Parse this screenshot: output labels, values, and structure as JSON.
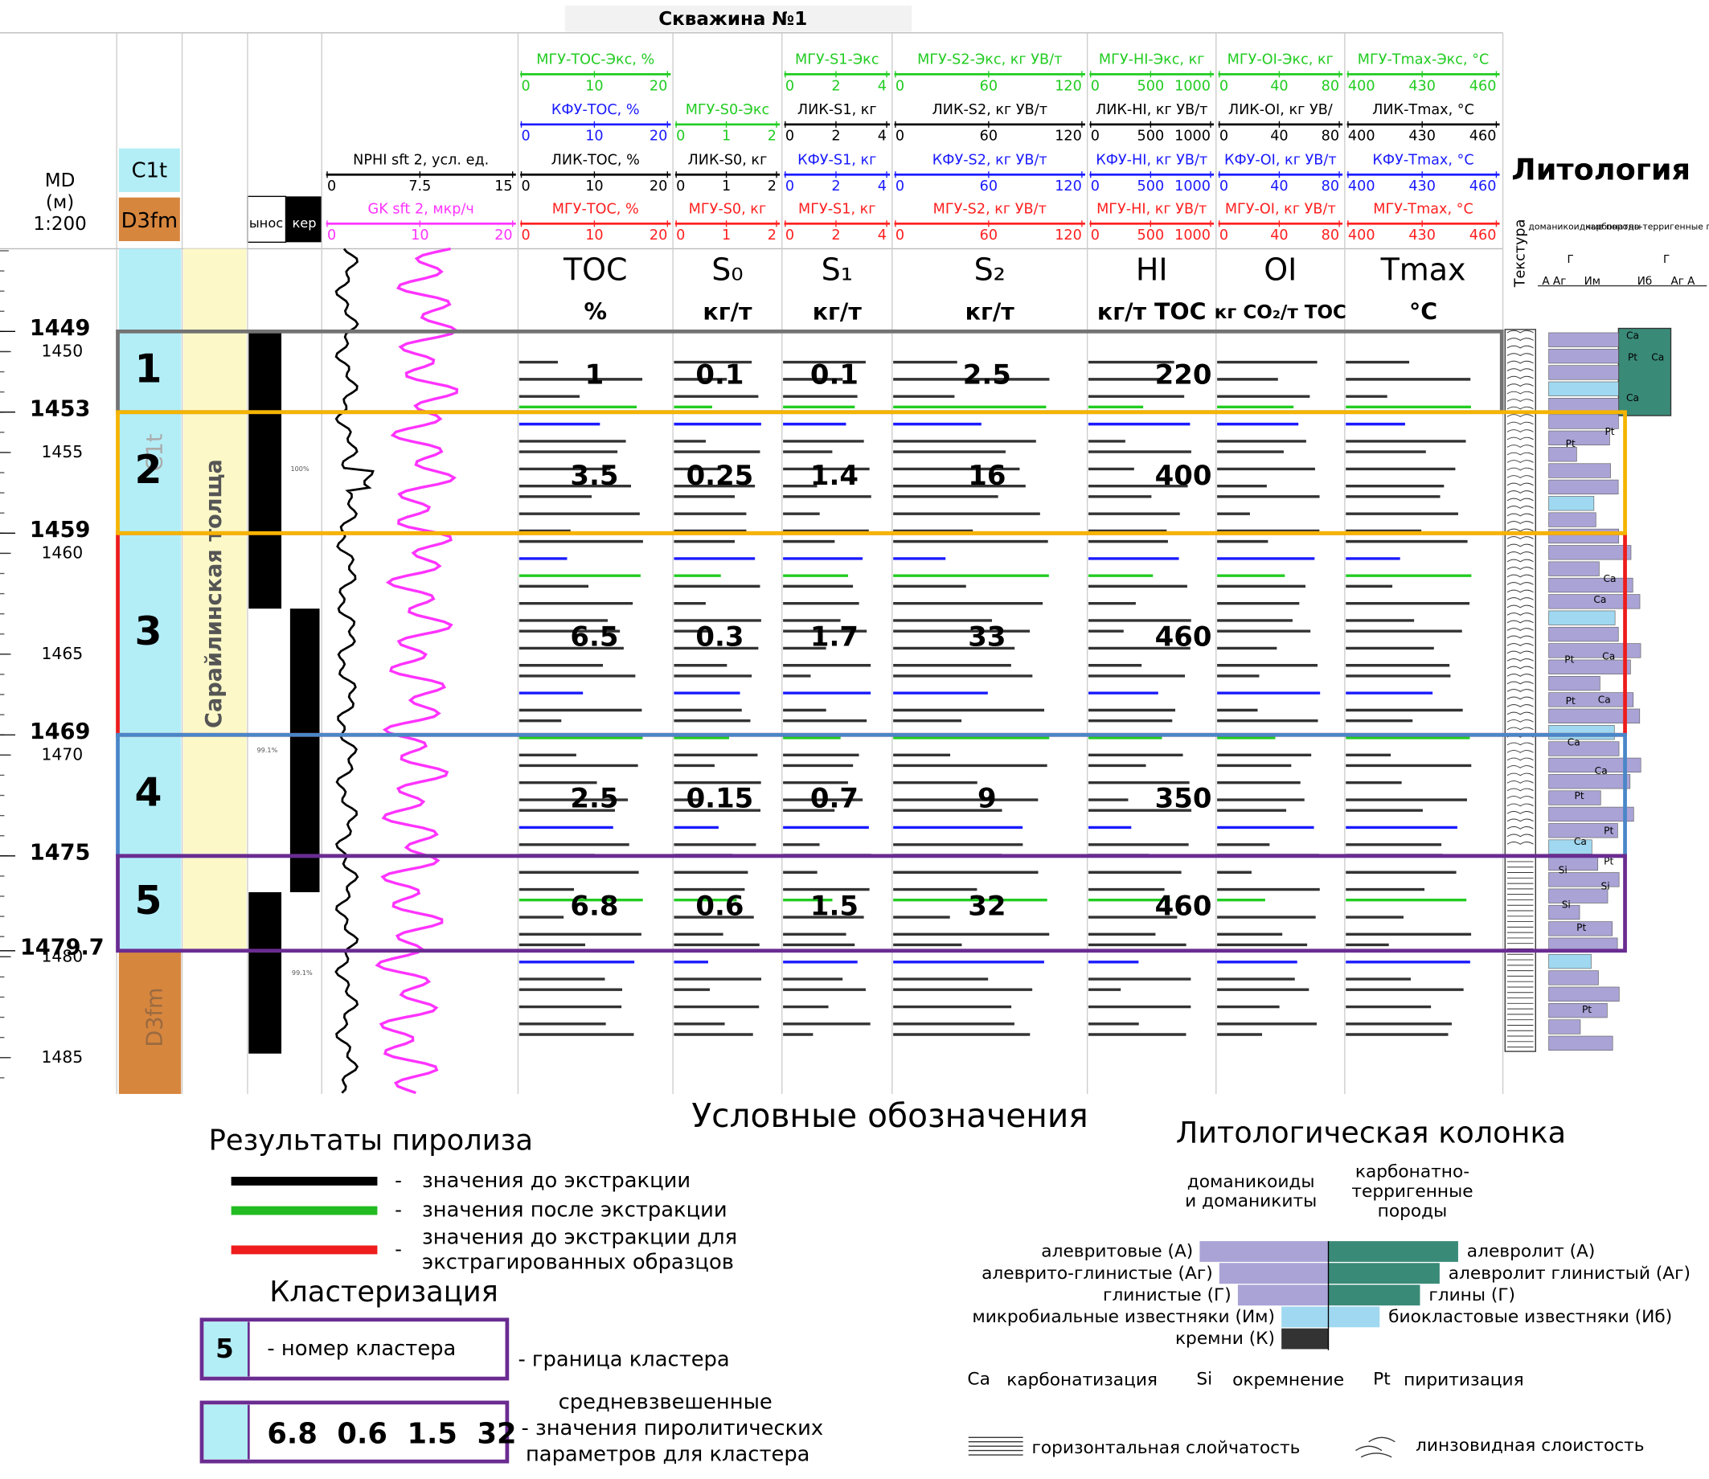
{
  "title": "Скважина №1",
  "depth_header": [
    "MD",
    "(м)",
    "1:200"
  ],
  "ylim": [
    1444.9,
    1486.8
  ],
  "depth_ticks": [
    1450,
    1455,
    1460,
    1465,
    1470,
    1480,
    1485
  ],
  "cluster_boundaries": [
    1449,
    1453,
    1459,
    1469,
    1475,
    1479.7
  ],
  "stratigraphy": [
    {
      "label": "C1t",
      "color": "#b3eef7"
    },
    {
      "label": "D3fm",
      "color": "#d7863e"
    }
  ],
  "formation": "Сарайлинская толща",
  "core_headers": [
    "ынос",
    "кер"
  ],
  "core_recovery": [
    "100%",
    "99.1%",
    "99.1%"
  ],
  "log_track": {
    "curves": [
      null,
      null,
      {
        "name": "NPHI sft 2, усл. ед.",
        "color": "#000000",
        "ticks": [
          0,
          7.5,
          15
        ]
      },
      {
        "name": "GK sft 2, мкр/ч",
        "color": "#ff33ff",
        "ticks": [
          0,
          10,
          20
        ]
      }
    ]
  },
  "pyrolysis_tracks": [
    {
      "heading": "TOC",
      "unit": "%",
      "curves": [
        {
          "name": "МГУ-TOC-Экс, %",
          "color": "#22cc22",
          "ticks": [
            0,
            10,
            20
          ]
        },
        {
          "name": "КФУ-TOC, %",
          "color": "#1a1aff",
          "ticks": [
            0,
            10,
            20
          ]
        },
        {
          "name": "ЛИК-TOC, %",
          "color": "#000000",
          "ticks": [
            0,
            10,
            20
          ]
        },
        {
          "name": "МГУ-TOC, %",
          "color": "#ff2020",
          "ticks": [
            0,
            10,
            20
          ]
        }
      ]
    },
    {
      "heading": "S₀",
      "unit": "кг/т",
      "curves": [
        null,
        {
          "name": "МГУ-S0-Экс",
          "color": "#22cc22",
          "ticks": [
            0,
            1,
            2
          ]
        },
        {
          "name": "ЛИК-S0, кг",
          "color": "#000000",
          "ticks": [
            0,
            1,
            2
          ]
        },
        {
          "name": "МГУ-S0, кг",
          "color": "#ff2020",
          "ticks": [
            0,
            1,
            2
          ]
        }
      ]
    },
    {
      "heading": "S₁",
      "unit": "кг/т",
      "curves": [
        {
          "name": "МГУ-S1-Экс",
          "color": "#22cc22",
          "ticks": [
            0,
            2,
            4
          ]
        },
        {
          "name": "ЛИК-S1, кг",
          "color": "#000000",
          "ticks": [
            0,
            2,
            4
          ]
        },
        {
          "name": "КФУ-S1, кг",
          "color": "#1a1aff",
          "ticks": [
            0,
            2,
            4
          ]
        },
        {
          "name": "МГУ-S1, кг",
          "color": "#ff2020",
          "ticks": [
            0,
            2,
            4
          ]
        }
      ]
    },
    {
      "heading": "S₂",
      "unit": "кг/т",
      "curves": [
        {
          "name": "МГУ-S2-Экс, кг УВ/т",
          "color": "#22cc22",
          "ticks": [
            0,
            60,
            120
          ]
        },
        {
          "name": "ЛИК-S2, кг УВ/т",
          "color": "#000000",
          "ticks": [
            0,
            60,
            120
          ]
        },
        {
          "name": "КФУ-S2, кг УВ/т",
          "color": "#1a1aff",
          "ticks": [
            0,
            60,
            120
          ]
        },
        {
          "name": "МГУ-S2, кг УВ/т",
          "color": "#ff2020",
          "ticks": [
            0,
            60,
            120
          ]
        }
      ]
    },
    {
      "heading": "HI",
      "unit": "кг/т TOC",
      "curves": [
        {
          "name": "МГУ-HI-Экс, кг",
          "color": "#22cc22",
          "ticks": [
            0,
            500,
            1000
          ]
        },
        {
          "name": "ЛИК-HI, кг УВ/т",
          "color": "#000000",
          "ticks": [
            0,
            500,
            1000
          ]
        },
        {
          "name": "КФУ-HI, кг УВ/т",
          "color": "#1a1aff",
          "ticks": [
            0,
            500,
            1000
          ]
        },
        {
          "name": "МГУ-HI, кг УВ/т",
          "color": "#ff2020",
          "ticks": [
            0,
            500,
            1000
          ]
        }
      ]
    },
    {
      "heading": "OI",
      "unit": "кг CO₂/т TOC",
      "curves": [
        {
          "name": "МГУ-OI-Экс, кг",
          "color": "#22cc22",
          "ticks": [
            0,
            40,
            80
          ]
        },
        {
          "name": "ЛИК-OI, кг УВ/",
          "color": "#000000",
          "ticks": [
            0,
            40,
            80
          ]
        },
        {
          "name": "КФУ-OI, кг УВ/т",
          "color": "#1a1aff",
          "ticks": [
            0,
            40,
            80
          ]
        },
        {
          "name": "МГУ-OI, кг УВ/т",
          "color": "#ff2020",
          "ticks": [
            0,
            40,
            80
          ]
        }
      ]
    },
    {
      "heading": "Tmax",
      "unit": "°C",
      "curves": [
        {
          "name": "МГУ-Tmax-Экс, °C",
          "color": "#22cc22",
          "ticks": [
            400,
            430,
            460
          ]
        },
        {
          "name": "ЛИК-Tmax, °C",
          "color": "#000000",
          "ticks": [
            400,
            430,
            460
          ]
        },
        {
          "name": "КФУ-Tmax, °C",
          "color": "#1a1aff",
          "ticks": [
            400,
            430,
            460
          ]
        },
        {
          "name": "МГУ-Tmax, °C",
          "color": "#ff2020",
          "ticks": [
            400,
            430,
            460
          ]
        }
      ]
    }
  ],
  "clusters": [
    {
      "number": 1,
      "color": "#737373",
      "values": [
        1,
        0.1,
        0.1,
        2.5,
        220
      ]
    },
    {
      "number": 2,
      "color": "#f5b400",
      "values": [
        3.5,
        0.25,
        1.4,
        16,
        400
      ]
    },
    {
      "number": 3,
      "color": "#ee1c1c",
      "values": [
        6.5,
        0.3,
        1.7,
        33,
        460
      ]
    },
    {
      "number": 4,
      "color": "#4a86c8",
      "values": [
        2.5,
        0.15,
        0.7,
        9,
        350
      ]
    },
    {
      "number": 5,
      "color": "#6a2c91",
      "values": [
        6.8,
        0.6,
        1.5,
        32,
        460
      ]
    }
  ],
  "lithology": {
    "title": "Литология",
    "texture": "Текстура",
    "groups": [
      "доманикоидные породы",
      "карбонатно-терригенные породы"
    ],
    "letters": [
      "Г",
      "А Аг",
      "Им",
      "Г",
      "Иб",
      "Аг А"
    ],
    "column_labels": [
      "Ca",
      "Pt",
      "Ca",
      "Ca",
      "Pt",
      "Pt",
      "Ca",
      "Ca",
      "Pt",
      "Ca",
      "Pt",
      "Ca",
      "Ca",
      "Ca",
      "Pt",
      "Ca",
      "Pt",
      "Si",
      "Si",
      "Si",
      "Pt",
      "Pt",
      "Pt"
    ]
  },
  "legend": {
    "title": "Условные обозначения",
    "pyrolysis": {
      "title": "Результаты пиролиза",
      "items": [
        {
          "color": "#000000",
          "label": "значения до экстракции"
        },
        {
          "color": "#22bb22",
          "label": "значения после экстракции"
        },
        {
          "color": "#ee1c1c",
          "label": [
            "значения до экстракции для",
            "экстрагированных образцов"
          ]
        }
      ]
    },
    "clustering": {
      "title": "Кластеризация",
      "number": "5",
      "number_text": "- номер кластера",
      "boundary_text": "- граница кластера",
      "values": "6.8  0.6  1.5  32",
      "values_text": [
        "средневзвешенные",
        "- значения пиролитических",
        "параметров  для кластера"
      ]
    },
    "lithology": {
      "title": "Литологическая колонка",
      "left_header": [
        "доманикоиды",
        "и доманикиты"
      ],
      "right_header": [
        "карбонатно-",
        "терригенные",
        "породы"
      ],
      "left": [
        "алевритовые (А)",
        "алеврито-глинистые (Аг)",
        "глинистые (Г)",
        "микробиальные известняки (Им)",
        "кремни (К)"
      ],
      "right": [
        "алевролит (А)",
        "алевролит глинистый (Аг)",
        "глины (Г)",
        "биокластовые известняки (Иб)"
      ],
      "symbols": [
        {
          "code": "Ca",
          "text": "карбонатизация"
        },
        {
          "code": "Si",
          "text": "окремнение"
        },
        {
          "code": "Pt",
          "text": "пиритизация"
        }
      ],
      "textures": [
        "горизонтальная слойчатость",
        "линзовидная слоистость"
      ]
    }
  }
}
